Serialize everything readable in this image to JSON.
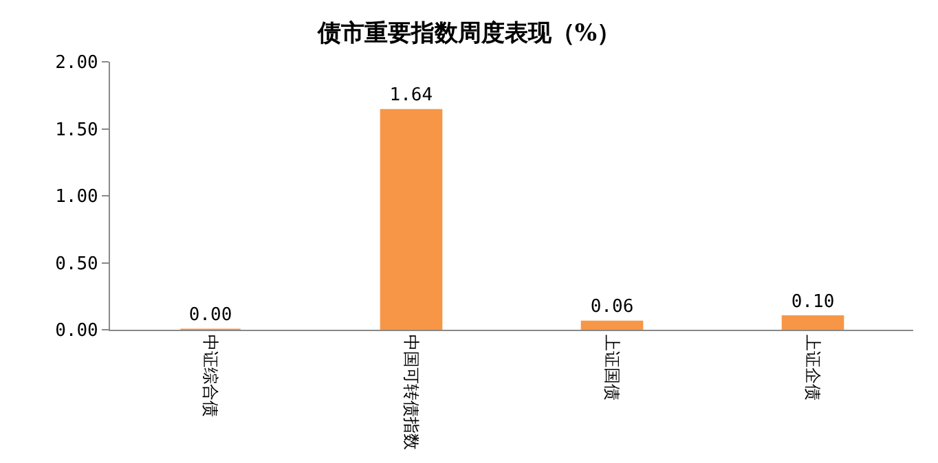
{
  "chart_data": {
    "type": "bar",
    "title": "债市重要指数周度表现（%）",
    "categories": [
      "中证综合债",
      "中国可转债指数",
      "上证国债",
      "上证企债"
    ],
    "values": [
      0.0,
      1.64,
      0.06,
      0.1
    ],
    "color": "#f79646",
    "ylim": [
      0,
      2
    ],
    "yticks": [
      {
        "value": 0,
        "label": "0.00"
      },
      {
        "value": 0.5,
        "label": "0.50"
      },
      {
        "value": 1,
        "label": "1.00"
      },
      {
        "value": 1.5,
        "label": "1.50"
      },
      {
        "value": 2,
        "label": "2.00"
      }
    ],
    "value_labels": [
      "0.00",
      "1.64",
      "0.06",
      "0.10"
    ]
  }
}
